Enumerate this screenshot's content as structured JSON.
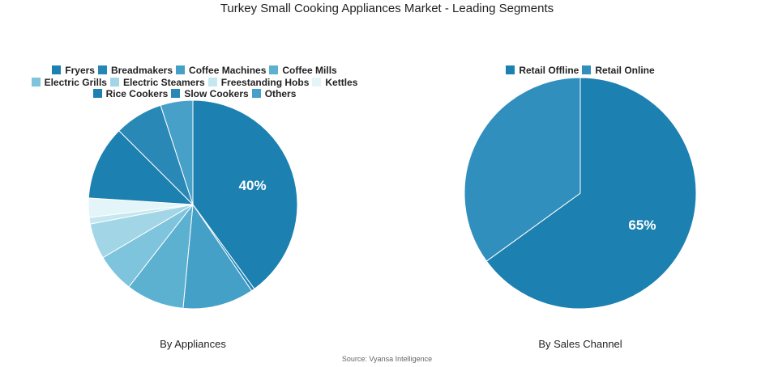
{
  "title": "Turkey Small Cooking Appliances Market - Leading Segments",
  "source": "Source: Vyansa Intelligence",
  "chart_data": [
    {
      "type": "pie",
      "subtitle": "By Appliances",
      "categories": [
        "Fryers",
        "Breadmakers",
        "Coffee Machines",
        "Coffee Mills",
        "Electric Grills",
        "Electric Steamers",
        "Freestanding Hobs",
        "Kettles",
        "Rice Cookers",
        "Slow Cookers",
        "Others"
      ],
      "values": [
        40,
        0.5,
        11,
        9,
        6,
        5.5,
        1,
        3,
        11.5,
        7.5,
        5
      ],
      "colors": [
        "#1c80b0",
        "#2487b5",
        "#45a0c8",
        "#5cb0d0",
        "#7ec4dc",
        "#a2d6e6",
        "#c5e7ef",
        "#e3f5f8",
        "#1c80b0",
        "#2a88b6",
        "#46a0c8"
      ],
      "labels": [
        "40%",
        "",
        "",
        "",
        "",
        "",
        "",
        "",
        "",
        "",
        ""
      ],
      "legend": "top"
    },
    {
      "type": "pie",
      "subtitle": "By Sales Channel",
      "categories": [
        "Retail Offline",
        "Retail Online"
      ],
      "values": [
        65,
        35
      ],
      "colors": [
        "#1c80b0",
        "#318fbd"
      ],
      "labels": [
        "65%",
        ""
      ],
      "legend": "top"
    }
  ]
}
